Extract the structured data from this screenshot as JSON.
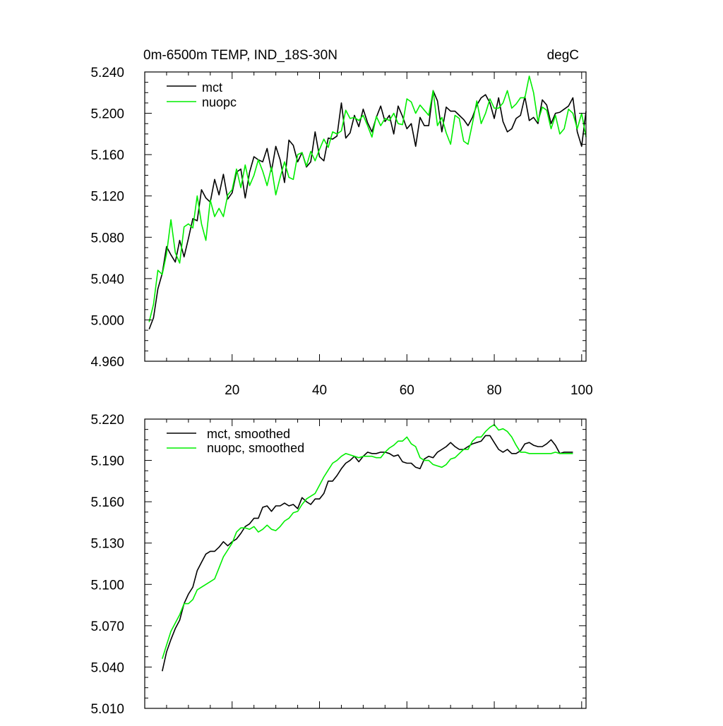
{
  "colors": {
    "mct": "#000000",
    "nuopc": "#00ee00",
    "frame": "#000000"
  },
  "chart_data": [
    {
      "type": "line",
      "title": "0m-6500m TEMP, IND_18S-30N",
      "units": "degC",
      "xlim": [
        0,
        101
      ],
      "ylim": [
        4.96,
        5.24
      ],
      "xticks": [
        20,
        40,
        60,
        80,
        100
      ],
      "xtick_labels": [
        "20",
        "40",
        "60",
        "80",
        "100"
      ],
      "yticks": [
        4.96,
        5.0,
        5.04,
        5.08,
        5.12,
        5.16,
        5.2,
        5.24
      ],
      "ytick_labels": [
        "4.960",
        "5.000",
        "5.040",
        "5.080",
        "5.120",
        "5.160",
        "5.200",
        "5.240"
      ],
      "legend": "top-left",
      "series": [
        {
          "name": "mct",
          "color": "#000000",
          "x": [
            1,
            2,
            3,
            4,
            5,
            6,
            7,
            8,
            9,
            10,
            11,
            12,
            13,
            14,
            15,
            16,
            17,
            18,
            19,
            20,
            21,
            22,
            23,
            24,
            25,
            26,
            27,
            28,
            29,
            30,
            31,
            32,
            33,
            34,
            35,
            36,
            37,
            38,
            39,
            40,
            41,
            42,
            43,
            44,
            45,
            46,
            47,
            48,
            49,
            50,
            51,
            52,
            53,
            54,
            55,
            56,
            57,
            58,
            59,
            60,
            61,
            62,
            63,
            64,
            65,
            66,
            67,
            68,
            69,
            70,
            71,
            72,
            73,
            74,
            75,
            76,
            77,
            78,
            79,
            80,
            81,
            82,
            83,
            84,
            85,
            86,
            87,
            88,
            89,
            90,
            91,
            92,
            93,
            94,
            95,
            96,
            97,
            98,
            99,
            100,
            101
          ],
          "y": [
            4.991,
            5.002,
            5.03,
            5.045,
            5.071,
            5.063,
            5.056,
            5.077,
            5.061,
            5.079,
            5.098,
            5.096,
            5.126,
            5.118,
            5.114,
            5.136,
            5.121,
            5.141,
            5.117,
            5.123,
            5.143,
            5.146,
            5.118,
            5.143,
            5.158,
            5.155,
            5.153,
            5.166,
            5.144,
            5.168,
            5.155,
            5.133,
            5.174,
            5.169,
            5.153,
            5.162,
            5.148,
            5.153,
            5.182,
            5.158,
            5.154,
            5.176,
            5.175,
            5.178,
            5.21,
            5.176,
            5.181,
            5.198,
            5.187,
            5.204,
            5.191,
            5.182,
            5.196,
            5.207,
            5.192,
            5.198,
            5.18,
            5.207,
            5.197,
            5.185,
            5.19,
            5.168,
            5.196,
            5.188,
            5.188,
            5.222,
            5.212,
            5.182,
            5.206,
            5.202,
            5.202,
            5.198,
            5.194,
            5.188,
            5.196,
            5.208,
            5.215,
            5.218,
            5.21,
            5.195,
            5.215,
            5.192,
            5.182,
            5.185,
            5.195,
            5.198,
            5.216,
            5.193,
            5.196,
            5.19,
            5.213,
            5.208,
            5.19,
            5.2,
            5.201,
            5.204,
            5.207,
            5.215,
            5.182,
            5.168,
            5.202
          ]
        },
        {
          "name": "nuopc",
          "color": "#00ee00",
          "x": [
            1,
            2,
            3,
            4,
            5,
            6,
            7,
            8,
            9,
            10,
            11,
            12,
            13,
            14,
            15,
            16,
            17,
            18,
            19,
            20,
            21,
            22,
            23,
            24,
            25,
            26,
            27,
            28,
            29,
            30,
            31,
            32,
            33,
            34,
            35,
            36,
            37,
            38,
            39,
            40,
            41,
            42,
            43,
            44,
            45,
            46,
            47,
            48,
            49,
            50,
            51,
            52,
            53,
            54,
            55,
            56,
            57,
            58,
            59,
            60,
            61,
            62,
            63,
            64,
            65,
            66,
            67,
            68,
            69,
            70,
            71,
            72,
            73,
            74,
            75,
            76,
            77,
            78,
            79,
            80,
            81,
            82,
            83,
            84,
            85,
            86,
            87,
            88,
            89,
            90,
            91,
            92,
            93,
            94,
            95,
            96,
            97,
            98,
            99,
            100,
            101
          ],
          "y": [
            4.998,
            5.015,
            5.048,
            5.044,
            5.064,
            5.097,
            5.065,
            5.055,
            5.09,
            5.093,
            5.089,
            5.12,
            5.093,
            5.077,
            5.116,
            5.1,
            5.108,
            5.1,
            5.121,
            5.126,
            5.146,
            5.128,
            5.15,
            5.13,
            5.14,
            5.155,
            5.144,
            5.13,
            5.148,
            5.121,
            5.138,
            5.153,
            5.138,
            5.136,
            5.16,
            5.162,
            5.149,
            5.163,
            5.154,
            5.165,
            5.175,
            5.167,
            5.182,
            5.18,
            5.183,
            5.203,
            5.195,
            5.196,
            5.193,
            5.198,
            5.188,
            5.177,
            5.197,
            5.188,
            5.195,
            5.193,
            5.2,
            5.19,
            5.189,
            5.214,
            5.211,
            5.2,
            5.208,
            5.203,
            5.198,
            5.222,
            5.188,
            5.196,
            5.181,
            5.17,
            5.198,
            5.195,
            5.173,
            5.17,
            5.19,
            5.212,
            5.19,
            5.2,
            5.214,
            5.205,
            5.205,
            5.21,
            5.222,
            5.205,
            5.209,
            5.215,
            5.215,
            5.236,
            5.22,
            5.192,
            5.206,
            5.203,
            5.185,
            5.198,
            5.18,
            5.185,
            5.204,
            5.2,
            5.185,
            5.2,
            5.177
          ]
        }
      ]
    },
    {
      "type": "line",
      "xlim": [
        0,
        101
      ],
      "ylim": [
        5.01,
        5.22
      ],
      "xticks": [
        20,
        40,
        60,
        80,
        100
      ],
      "yticks": [
        5.01,
        5.04,
        5.07,
        5.1,
        5.13,
        5.16,
        5.19,
        5.22
      ],
      "ytick_labels": [
        "5.010",
        "5.040",
        "5.070",
        "5.100",
        "5.130",
        "5.160",
        "5.190",
        "5.220"
      ],
      "legend": "top-left",
      "series": [
        {
          "name": "mct, smoothed",
          "color": "#000000",
          "x": [
            4,
            5,
            6,
            7,
            8,
            9,
            10,
            11,
            12,
            13,
            14,
            15,
            16,
            17,
            18,
            19,
            20,
            21,
            22,
            23,
            24,
            25,
            26,
            27,
            28,
            29,
            30,
            31,
            32,
            33,
            34,
            35,
            36,
            37,
            38,
            39,
            40,
            41,
            42,
            43,
            44,
            45,
            46,
            47,
            48,
            49,
            50,
            51,
            52,
            53,
            54,
            55,
            56,
            57,
            58,
            59,
            60,
            61,
            62,
            63,
            64,
            65,
            66,
            67,
            68,
            69,
            70,
            71,
            72,
            73,
            74,
            75,
            76,
            77,
            78,
            79,
            80,
            81,
            82,
            83,
            84,
            85,
            86,
            87,
            88,
            89,
            90,
            91,
            92,
            93,
            94,
            95,
            96,
            97,
            98
          ],
          "y": [
            5.037,
            5.051,
            5.06,
            5.068,
            5.074,
            5.086,
            5.093,
            5.098,
            5.11,
            5.116,
            5.122,
            5.124,
            5.124,
            5.127,
            5.131,
            5.128,
            5.131,
            5.133,
            5.137,
            5.142,
            5.144,
            5.148,
            5.148,
            5.156,
            5.157,
            5.153,
            5.157,
            5.157,
            5.159,
            5.157,
            5.158,
            5.155,
            5.163,
            5.16,
            5.158,
            5.162,
            5.162,
            5.166,
            5.175,
            5.175,
            5.179,
            5.184,
            5.188,
            5.19,
            5.193,
            5.189,
            5.193,
            5.196,
            5.195,
            5.195,
            5.196,
            5.196,
            5.195,
            5.193,
            5.194,
            5.189,
            5.188,
            5.188,
            5.185,
            5.184,
            5.191,
            5.193,
            5.192,
            5.196,
            5.198,
            5.2,
            5.203,
            5.2,
            5.198,
            5.198,
            5.2,
            5.202,
            5.203,
            5.204,
            5.208,
            5.208,
            5.203,
            5.198,
            5.196,
            5.198,
            5.195,
            5.195,
            5.197,
            5.202,
            5.203,
            5.201,
            5.2,
            5.2,
            5.202,
            5.205,
            5.201,
            5.195,
            5.196,
            5.196,
            5.196
          ]
        },
        {
          "name": "nuopc, smoothed",
          "color": "#00ee00",
          "x": [
            4,
            5,
            6,
            7,
            8,
            9,
            10,
            11,
            12,
            13,
            14,
            15,
            16,
            17,
            18,
            19,
            20,
            21,
            22,
            23,
            24,
            25,
            26,
            27,
            28,
            29,
            30,
            31,
            32,
            33,
            34,
            35,
            36,
            37,
            38,
            39,
            40,
            41,
            42,
            43,
            44,
            45,
            46,
            47,
            48,
            49,
            50,
            51,
            52,
            53,
            54,
            55,
            56,
            57,
            58,
            59,
            60,
            61,
            62,
            63,
            64,
            65,
            66,
            67,
            68,
            69,
            70,
            71,
            72,
            73,
            74,
            75,
            76,
            77,
            78,
            79,
            80,
            81,
            82,
            83,
            84,
            85,
            86,
            87,
            88,
            89,
            90,
            91,
            92,
            93,
            94,
            95,
            96,
            97,
            98
          ],
          "y": [
            5.046,
            5.056,
            5.066,
            5.072,
            5.078,
            5.086,
            5.086,
            5.089,
            5.096,
            5.098,
            5.1,
            5.102,
            5.104,
            5.112,
            5.12,
            5.125,
            5.13,
            5.138,
            5.141,
            5.141,
            5.14,
            5.142,
            5.138,
            5.14,
            5.143,
            5.14,
            5.139,
            5.142,
            5.146,
            5.148,
            5.152,
            5.153,
            5.158,
            5.162,
            5.164,
            5.166,
            5.172,
            5.178,
            5.183,
            5.188,
            5.19,
            5.193,
            5.195,
            5.194,
            5.193,
            5.192,
            5.193,
            5.193,
            5.193,
            5.192,
            5.192,
            5.196,
            5.199,
            5.201,
            5.204,
            5.204,
            5.207,
            5.202,
            5.2,
            5.192,
            5.19,
            5.19,
            5.187,
            5.186,
            5.185,
            5.187,
            5.191,
            5.192,
            5.195,
            5.198,
            5.198,
            5.204,
            5.207,
            5.207,
            5.211,
            5.214,
            5.216,
            5.212,
            5.213,
            5.211,
            5.207,
            5.201,
            5.196,
            5.196,
            5.195,
            5.195,
            5.195,
            5.195,
            5.195,
            5.195,
            5.196,
            5.195,
            5.195,
            5.195,
            5.195
          ]
        }
      ]
    }
  ]
}
